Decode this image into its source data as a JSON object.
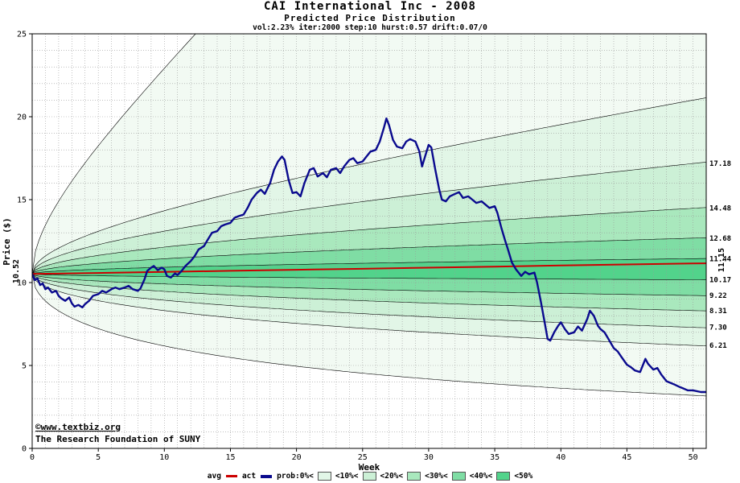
{
  "colors": {
    "copyright": "#0000cc",
    "title": "#000000",
    "grid": "#999999"
  },
  "branding": {
    "line1": "©www.textbiz.org",
    "line2": "The Research Foundation of SUNY"
  },
  "legend": {
    "avg_label": "avg",
    "act_label": "act",
    "prob_labels": [
      "prob:0%<",
      "<10%<",
      "<20%<",
      "<30%<",
      "<40%<",
      "<50%"
    ]
  },
  "chart_data": {
    "type": "line",
    "variant": "fan-probability-distribution",
    "title": "CAI International Inc - 2008",
    "subtitle": "Predicted Price Distribution",
    "stats_line": "vol:2.23% iter:2000 step:10 hurst:0.57 drift:0.07/0",
    "xlabel": "Week",
    "ylabel": "Price ($)",
    "xlim": [
      0,
      51
    ],
    "ylim": [
      0,
      25
    ],
    "x_ticks": [
      0,
      5,
      10,
      15,
      20,
      25,
      30,
      35,
      40,
      45,
      50
    ],
    "y_ticks": [
      0,
      5,
      10,
      15,
      20,
      25
    ],
    "grid_step": [
      1,
      1
    ],
    "legend_position": "bottom",
    "start_price": 10.52,
    "start_price_label": "10.52",
    "avg_final": 11.15,
    "avg_final_label": "11.15",
    "fan_horizon": 50,
    "boundary_color": "#000000",
    "fan_boundaries": [
      {
        "end_value": 3.2,
        "label": ""
      },
      {
        "end_value": 6.21,
        "label": "6.21"
      },
      {
        "end_value": 7.3,
        "label": "7.30"
      },
      {
        "end_value": 8.31,
        "label": "8.31"
      },
      {
        "end_value": 9.22,
        "label": "9.22"
      },
      {
        "end_value": 10.17,
        "label": "10.17"
      },
      {
        "end_value": 11.44,
        "label": "11.44"
      },
      {
        "end_value": 12.68,
        "label": "12.68"
      },
      {
        "end_value": 14.48,
        "label": "14.48"
      },
      {
        "end_value": 17.18,
        "label": "17.18"
      },
      {
        "end_value": 21.0,
        "label": ""
      },
      {
        "end_value": 60.0,
        "label": ""
      }
    ],
    "band_colors": [
      "#f2faf3",
      "#e2f6e7",
      "#ccf0d6",
      "#a9e8bd",
      "#7fdda4",
      "#52d38b"
    ],
    "band_color_index": [
      0,
      1,
      2,
      3,
      4,
      5,
      4,
      3,
      2,
      1,
      0
    ],
    "series": [
      {
        "name": "avg",
        "color": "#cc0000",
        "width": 2,
        "points": [
          [
            0,
            10.52
          ],
          [
            5,
            10.58
          ],
          [
            10,
            10.64
          ],
          [
            15,
            10.71
          ],
          [
            20,
            10.77
          ],
          [
            25,
            10.83
          ],
          [
            30,
            10.9
          ],
          [
            35,
            10.96
          ],
          [
            40,
            11.03
          ],
          [
            45,
            11.09
          ],
          [
            50,
            11.15
          ],
          [
            51,
            11.16
          ]
        ]
      },
      {
        "name": "act",
        "color": "#0a0a8e",
        "width": 2.4,
        "points": [
          [
            0,
            10.52
          ],
          [
            0.2,
            10.15
          ],
          [
            0.4,
            10.25
          ],
          [
            0.6,
            9.85
          ],
          [
            0.8,
            9.95
          ],
          [
            1,
            9.6
          ],
          [
            1.2,
            9.7
          ],
          [
            1.5,
            9.4
          ],
          [
            1.8,
            9.5
          ],
          [
            2,
            9.2
          ],
          [
            2.2,
            9.05
          ],
          [
            2.5,
            8.9
          ],
          [
            2.8,
            9.1
          ],
          [
            3,
            8.75
          ],
          [
            3.2,
            8.55
          ],
          [
            3.5,
            8.65
          ],
          [
            3.8,
            8.5
          ],
          [
            4,
            8.7
          ],
          [
            4.3,
            8.9
          ],
          [
            4.6,
            9.2
          ],
          [
            5,
            9.3
          ],
          [
            5.3,
            9.5
          ],
          [
            5.6,
            9.4
          ],
          [
            6,
            9.6
          ],
          [
            6.3,
            9.7
          ],
          [
            6.6,
            9.6
          ],
          [
            7,
            9.7
          ],
          [
            7.3,
            9.8
          ],
          [
            7.6,
            9.6
          ],
          [
            8,
            9.5
          ],
          [
            8.2,
            9.65
          ],
          [
            8.5,
            10.2
          ],
          [
            8.7,
            10.7
          ],
          [
            9,
            10.9
          ],
          [
            9.2,
            11.0
          ],
          [
            9.5,
            10.75
          ],
          [
            9.8,
            10.9
          ],
          [
            10,
            10.8
          ],
          [
            10.2,
            10.4
          ],
          [
            10.5,
            10.3
          ],
          [
            10.8,
            10.55
          ],
          [
            11,
            10.45
          ],
          [
            11.3,
            10.7
          ],
          [
            11.6,
            11.0
          ],
          [
            12,
            11.3
          ],
          [
            12.3,
            11.6
          ],
          [
            12.6,
            12.0
          ],
          [
            13,
            12.2
          ],
          [
            13.3,
            12.6
          ],
          [
            13.6,
            13.0
          ],
          [
            14,
            13.1
          ],
          [
            14.3,
            13.4
          ],
          [
            14.6,
            13.5
          ],
          [
            15,
            13.6
          ],
          [
            15.3,
            13.9
          ],
          [
            15.6,
            14.0
          ],
          [
            16,
            14.1
          ],
          [
            16.3,
            14.5
          ],
          [
            16.6,
            15.0
          ],
          [
            17,
            15.4
          ],
          [
            17.3,
            15.6
          ],
          [
            17.6,
            15.35
          ],
          [
            18,
            16.0
          ],
          [
            18.3,
            16.8
          ],
          [
            18.6,
            17.3
          ],
          [
            18.9,
            17.6
          ],
          [
            19.1,
            17.4
          ],
          [
            19.4,
            16.2
          ],
          [
            19.7,
            15.4
          ],
          [
            20,
            15.45
          ],
          [
            20.3,
            15.2
          ],
          [
            20.6,
            16.0
          ],
          [
            21,
            16.8
          ],
          [
            21.3,
            16.9
          ],
          [
            21.6,
            16.4
          ],
          [
            22,
            16.6
          ],
          [
            22.3,
            16.35
          ],
          [
            22.6,
            16.8
          ],
          [
            23,
            16.9
          ],
          [
            23.3,
            16.6
          ],
          [
            23.6,
            17.0
          ],
          [
            24,
            17.4
          ],
          [
            24.3,
            17.5
          ],
          [
            24.6,
            17.2
          ],
          [
            25,
            17.3
          ],
          [
            25.3,
            17.6
          ],
          [
            25.6,
            17.9
          ],
          [
            26,
            18.0
          ],
          [
            26.3,
            18.5
          ],
          [
            26.6,
            19.3
          ],
          [
            26.8,
            19.9
          ],
          [
            27,
            19.5
          ],
          [
            27.3,
            18.6
          ],
          [
            27.6,
            18.2
          ],
          [
            28,
            18.1
          ],
          [
            28.3,
            18.5
          ],
          [
            28.6,
            18.65
          ],
          [
            29,
            18.5
          ],
          [
            29.3,
            17.9
          ],
          [
            29.5,
            17.0
          ],
          [
            29.8,
            17.8
          ],
          [
            30,
            18.3
          ],
          [
            30.2,
            18.15
          ],
          [
            30.5,
            16.8
          ],
          [
            30.8,
            15.6
          ],
          [
            31,
            15.0
          ],
          [
            31.3,
            14.9
          ],
          [
            31.6,
            15.2
          ],
          [
            32,
            15.35
          ],
          [
            32.3,
            15.45
          ],
          [
            32.6,
            15.1
          ],
          [
            33,
            15.2
          ],
          [
            33.3,
            15.0
          ],
          [
            33.6,
            14.8
          ],
          [
            34,
            14.9
          ],
          [
            34.3,
            14.7
          ],
          [
            34.6,
            14.5
          ],
          [
            35,
            14.6
          ],
          [
            35.2,
            14.2
          ],
          [
            35.5,
            13.3
          ],
          [
            35.8,
            12.5
          ],
          [
            36,
            12.0
          ],
          [
            36.3,
            11.2
          ],
          [
            36.6,
            10.8
          ],
          [
            37,
            10.4
          ],
          [
            37.3,
            10.65
          ],
          [
            37.6,
            10.5
          ],
          [
            38,
            10.6
          ],
          [
            38.2,
            10.0
          ],
          [
            38.5,
            8.8
          ],
          [
            38.8,
            7.5
          ],
          [
            39,
            6.6
          ],
          [
            39.2,
            6.5
          ],
          [
            39.5,
            7.0
          ],
          [
            39.8,
            7.4
          ],
          [
            40,
            7.6
          ],
          [
            40.3,
            7.2
          ],
          [
            40.6,
            6.9
          ],
          [
            41,
            7.0
          ],
          [
            41.3,
            7.35
          ],
          [
            41.6,
            7.1
          ],
          [
            42,
            7.8
          ],
          [
            42.2,
            8.3
          ],
          [
            42.5,
            8.0
          ],
          [
            42.8,
            7.4
          ],
          [
            43,
            7.2
          ],
          [
            43.3,
            7.0
          ],
          [
            43.6,
            6.6
          ],
          [
            44,
            6.05
          ],
          [
            44.3,
            5.85
          ],
          [
            44.6,
            5.5
          ],
          [
            45,
            5.05
          ],
          [
            45.3,
            4.9
          ],
          [
            45.6,
            4.7
          ],
          [
            46,
            4.6
          ],
          [
            46.2,
            5.0
          ],
          [
            46.4,
            5.4
          ],
          [
            46.6,
            5.1
          ],
          [
            47,
            4.75
          ],
          [
            47.3,
            4.85
          ],
          [
            47.6,
            4.45
          ],
          [
            48,
            4.05
          ],
          [
            48.3,
            3.95
          ],
          [
            48.6,
            3.85
          ],
          [
            49,
            3.7
          ],
          [
            49.3,
            3.6
          ],
          [
            49.6,
            3.5
          ],
          [
            50,
            3.5
          ],
          [
            50.6,
            3.4
          ],
          [
            51,
            3.4
          ]
        ]
      }
    ]
  }
}
